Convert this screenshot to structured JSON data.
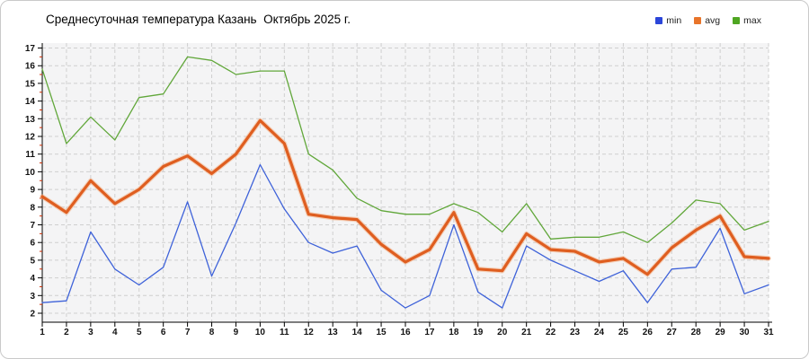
{
  "header": {
    "title": "Среднесуточная температура Казань  Октябрь 2025 г."
  },
  "legend": {
    "items": [
      {
        "label": "min",
        "color": "#2b46d9"
      },
      {
        "label": "avg",
        "color": "#e8742a"
      },
      {
        "label": "max",
        "color": "#4fa622"
      }
    ]
  },
  "chart_data": {
    "type": "line",
    "title": "Среднесуточная температура Казань  Октябрь 2025 г.",
    "xlabel": "",
    "ylabel": "",
    "x": [
      1,
      2,
      3,
      4,
      5,
      6,
      7,
      8,
      9,
      10,
      11,
      12,
      13,
      14,
      15,
      16,
      17,
      18,
      19,
      20,
      21,
      22,
      23,
      24,
      25,
      26,
      27,
      28,
      29,
      30,
      31
    ],
    "y_ticks": [
      2,
      3,
      4,
      5,
      6,
      7,
      8,
      9,
      10,
      11,
      12,
      13,
      14,
      15,
      16,
      17
    ],
    "ylim": [
      1.5,
      17.3
    ],
    "grid": true,
    "legend_position": "top-right",
    "plot_bg": "#f4f4f5",
    "grid_color": "#cfcfcf",
    "axis_color": "#000000",
    "minor_tick_color": "#cc2a00",
    "series": [
      {
        "name": "min",
        "color": "#3e62d9",
        "width": 1.3,
        "values": [
          2.6,
          2.7,
          6.6,
          4.5,
          3.6,
          4.6,
          8.3,
          4.1,
          7.1,
          10.4,
          7.9,
          6.0,
          5.4,
          5.8,
          3.3,
          2.3,
          3.0,
          7.0,
          3.2,
          2.3,
          5.8,
          5.0,
          4.4,
          3.8,
          4.4,
          2.6,
          4.5,
          4.6,
          6.8,
          3.1,
          3.6
        ]
      },
      {
        "name": "avg",
        "color": "#df5e20",
        "width": 3.2,
        "halo": "#f3ad80",
        "values": [
          8.6,
          7.7,
          9.5,
          8.2,
          9.0,
          10.3,
          10.9,
          9.9,
          11.0,
          12.9,
          11.6,
          7.6,
          7.4,
          7.3,
          5.9,
          4.9,
          5.6,
          7.7,
          4.5,
          4.4,
          6.5,
          5.6,
          5.5,
          4.9,
          5.1,
          4.2,
          5.7,
          6.7,
          7.5,
          5.2,
          5.1
        ]
      },
      {
        "name": "max",
        "color": "#61a73a",
        "width": 1.3,
        "values": [
          15.8,
          11.6,
          13.1,
          11.8,
          14.2,
          14.4,
          16.5,
          16.3,
          15.5,
          15.7,
          15.7,
          11.0,
          10.1,
          8.5,
          7.8,
          7.6,
          7.6,
          8.2,
          7.7,
          6.6,
          8.2,
          6.2,
          6.3,
          6.3,
          6.6,
          6.0,
          7.1,
          8.4,
          8.2,
          6.7,
          7.2
        ]
      }
    ]
  }
}
